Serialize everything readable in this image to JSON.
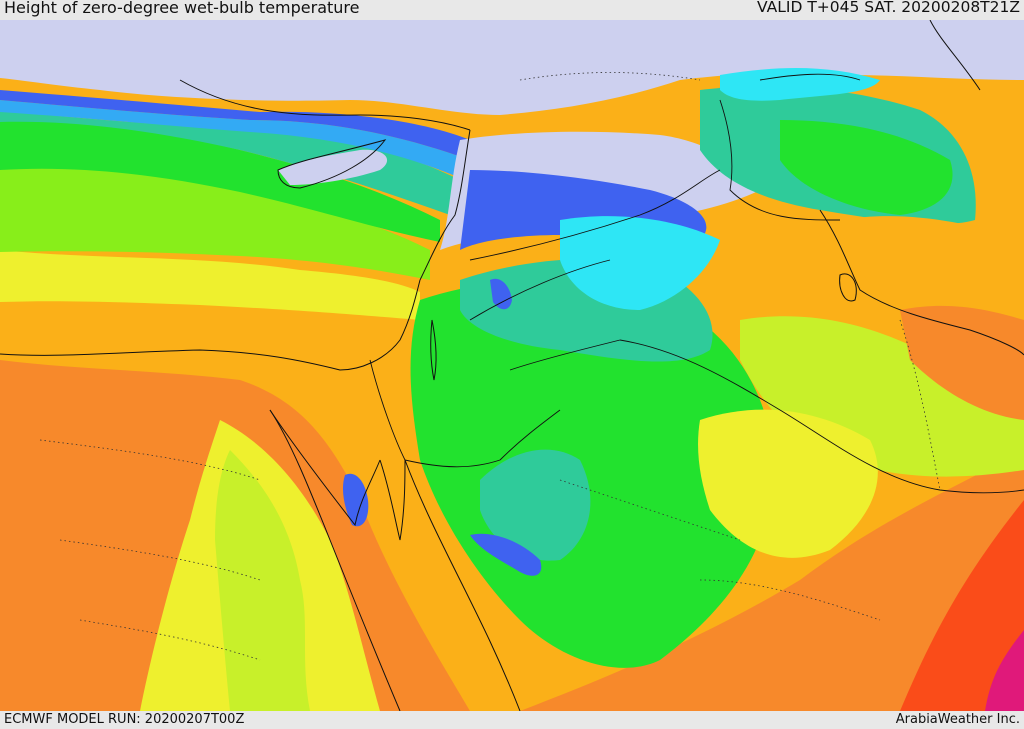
{
  "header": {
    "title": "Height of zero-degree wet-bulb temperature",
    "valid_time": "VALID T+045 SAT. 20200208T21Z"
  },
  "footer": {
    "model_run": "ECMWF MODEL RUN: 20200207T00Z",
    "credit": "ArabiaWeather Inc."
  },
  "colors": {
    "lavender": "#cdd0ef",
    "blue_violet": "#6b6be8",
    "royal_blue": "#3f62f0",
    "sky_blue": "#33aaf4",
    "cyan": "#2ee6f5",
    "teal": "#2fcb9a",
    "green": "#22e22e",
    "lime": "#88ee1a",
    "yellow_green": "#c8f02a",
    "yellow": "#eef02e",
    "orange": "#fbb018",
    "dark_orange": "#f7892b",
    "red_orange": "#fa4c19",
    "magenta": "#e0197a"
  }
}
